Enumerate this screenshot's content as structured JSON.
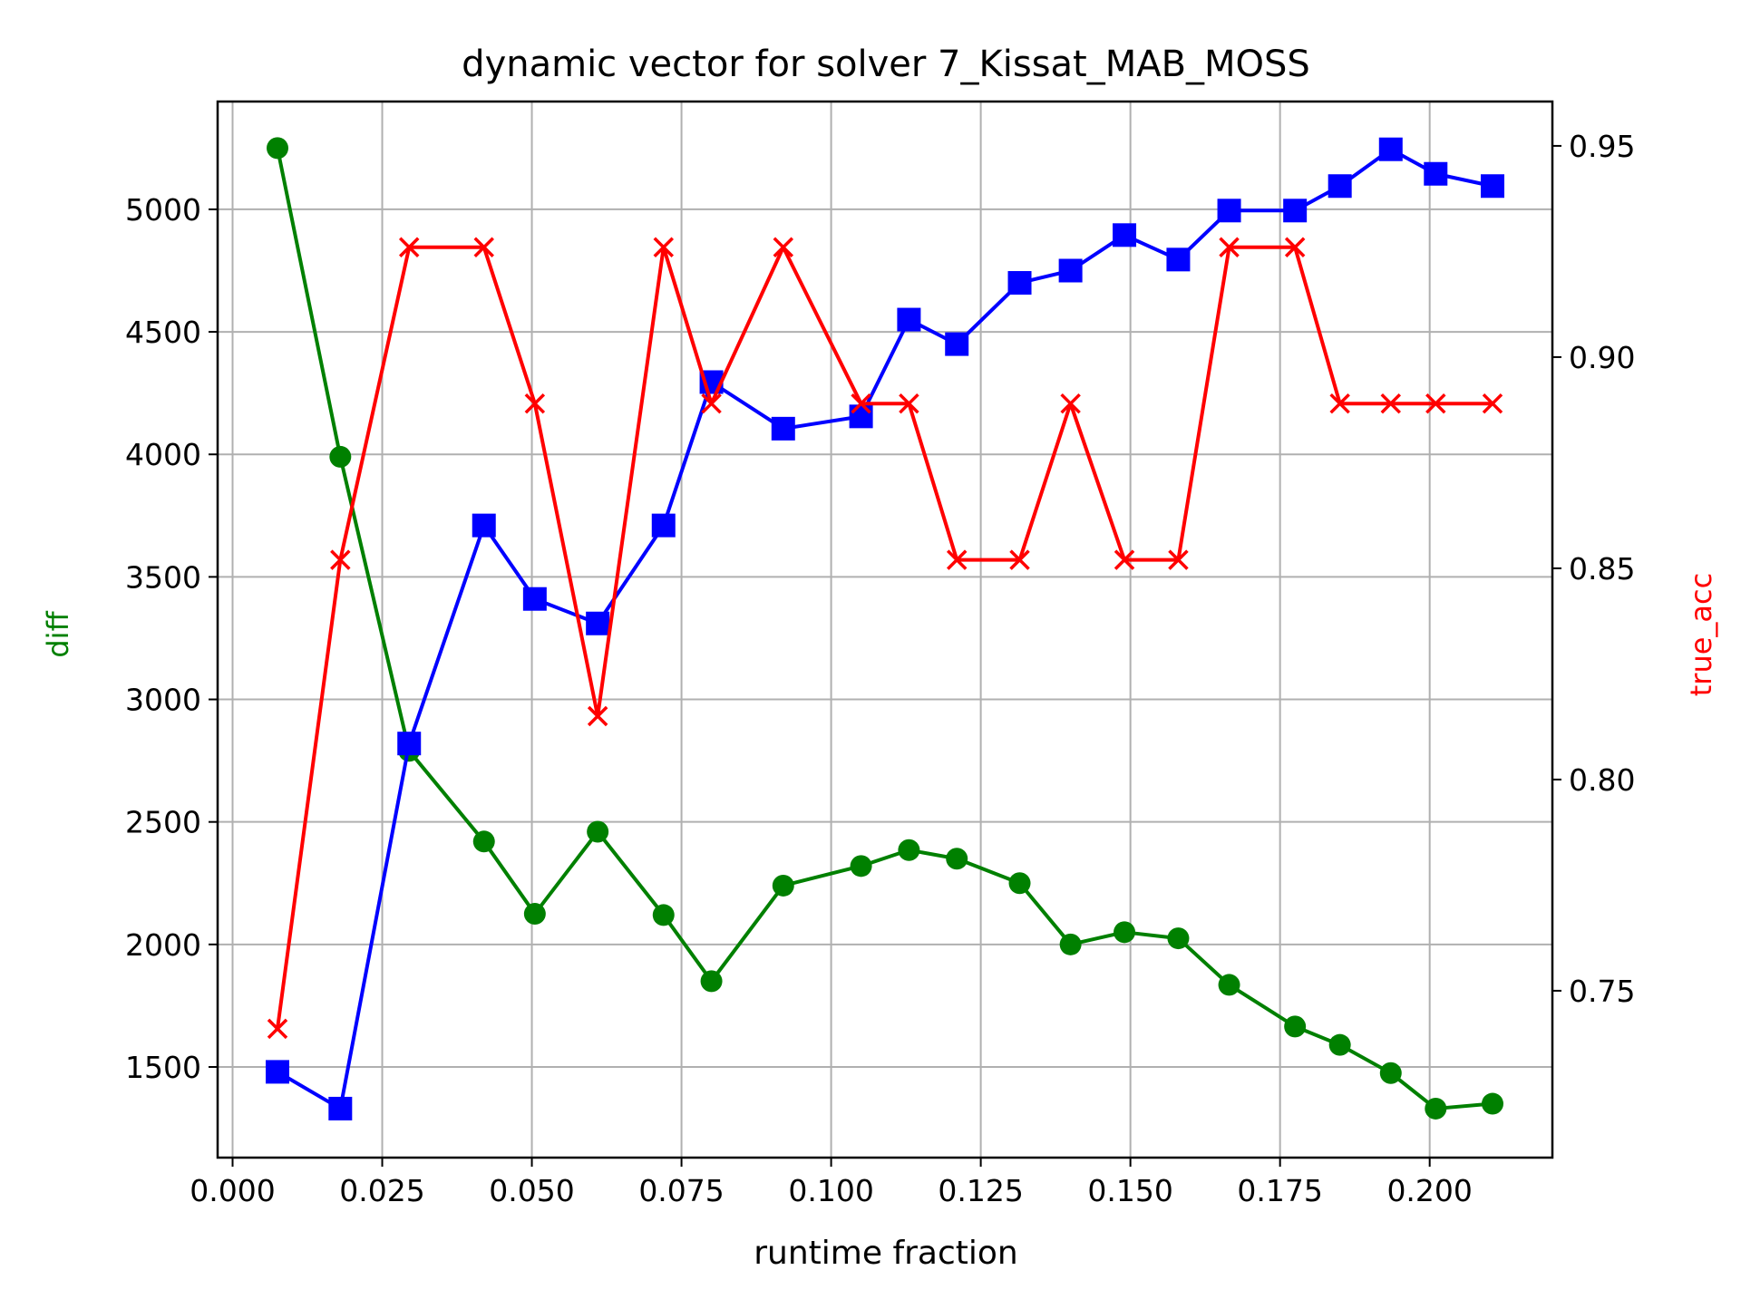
{
  "chart_data": {
    "type": "line",
    "title": "dynamic vector for solver 7_Kissat_MAB_MOSS",
    "xlabel": "runtime fraction",
    "ylabel_left": "diff",
    "ylabel_right": "true_acc",
    "xlim": [
      -0.0025,
      0.2205
    ],
    "ylim_left": [
      1130,
      5440
    ],
    "ylim_right": [
      0.7105,
      0.9605
    ],
    "grid": true,
    "x_ticks": [
      "0.000",
      "0.025",
      "0.050",
      "0.075",
      "0.100",
      "0.125",
      "0.150",
      "0.175",
      "0.200"
    ],
    "y_left_ticks": [
      "1500",
      "2000",
      "2500",
      "3000",
      "3500",
      "4000",
      "4500",
      "5000"
    ],
    "y_right_ticks": [
      "0.75",
      "0.80",
      "0.85",
      "0.90",
      "0.95"
    ],
    "colors": {
      "diff": "#008000",
      "blue_series": "#0000ff",
      "true_acc": "#ff0000",
      "axis_label_left": "#008000",
      "axis_label_right": "#ff0000",
      "grid": "#b0b0b0"
    },
    "x": [
      0.0075,
      0.018,
      0.0295,
      0.042,
      0.0505,
      0.061,
      0.072,
      0.08,
      0.092,
      0.105,
      0.113,
      0.121,
      0.1315,
      0.14,
      0.149,
      0.158,
      0.1665,
      0.1775,
      0.185,
      0.1935,
      0.201,
      0.2105
    ],
    "series": [
      {
        "axis": "left",
        "marker": "circle",
        "color": "#008000",
        "values": [
          5250,
          3990,
          2790,
          2420,
          2125,
          2460,
          2120,
          1850,
          2240,
          2320,
          2385,
          2350,
          2250,
          2000,
          2050,
          2025,
          1835,
          1665,
          1590,
          1475,
          1330,
          1350
        ]
      },
      {
        "axis": "left",
        "marker": "square",
        "color": "#0000ff",
        "values": [
          1480,
          1330,
          2820,
          3710,
          3410,
          3310,
          3710,
          4295,
          4105,
          4155,
          4550,
          4450,
          4700,
          4750,
          4895,
          4795,
          4995,
          4995,
          5095,
          5245,
          5145,
          5095
        ]
      },
      {
        "axis": "right",
        "marker": "x",
        "color": "#ff0000",
        "values": [
          0.741,
          0.852,
          0.926,
          0.926,
          0.889,
          0.815,
          0.926,
          0.889,
          0.926,
          0.889,
          0.889,
          0.852,
          0.852,
          0.889,
          0.852,
          0.852,
          0.926,
          0.926,
          0.889,
          0.889,
          0.889,
          0.889
        ]
      }
    ]
  }
}
